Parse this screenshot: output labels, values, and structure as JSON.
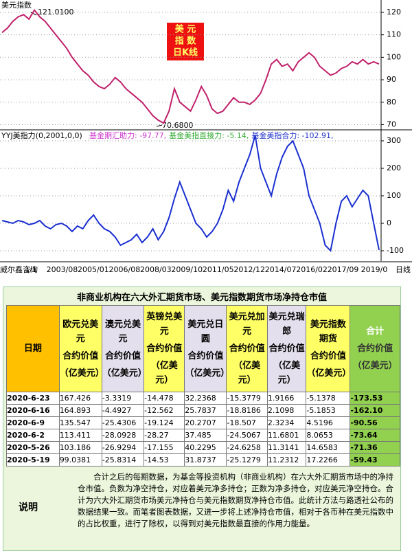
{
  "price_chart": {
    "type": "line",
    "title": "美元指数",
    "box_lines": [
      "美 元",
      "指 数",
      "日K线"
    ],
    "high_label": "121.0100",
    "low_label": "70.6800",
    "color": "#c0206a",
    "ylim": [
      68,
      125.5
    ],
    "yticks": [
      70,
      80,
      90,
      100,
      110,
      120
    ],
    "grid": true,
    "values": [
      111,
      113,
      116,
      118,
      119,
      117,
      121.01,
      118,
      116,
      113,
      110,
      107,
      104,
      100,
      97,
      94,
      92,
      89,
      87,
      86,
      88,
      91,
      89,
      86,
      84,
      82,
      80,
      77,
      74,
      72,
      70.68,
      76,
      86,
      80,
      78,
      76,
      81,
      87,
      83,
      77,
      75,
      76,
      79,
      82,
      80,
      80,
      79,
      81,
      84,
      90,
      97,
      99,
      96,
      97,
      94,
      98,
      100,
      102,
      100,
      96,
      94,
      92,
      93,
      95,
      96,
      98,
      97,
      99,
      97,
      98,
      97
    ]
  },
  "indicator_chart": {
    "type": "line",
    "title": "YYJ美指力(0,2001,0,0)",
    "legend": [
      {
        "text": "基金期汇助力: -97.77,",
        "color": "#cc33cc"
      },
      {
        "text": "基金美指直接力: -5.14,",
        "color": "#33aa33"
      },
      {
        "text": "基金美指合力: -102.91,",
        "color": "#2233cc"
      }
    ],
    "color": "#1a2fd0",
    "ylim": [
      -137.5,
      337.5
    ],
    "yticks": [
      -100,
      0,
      100,
      200,
      300
    ],
    "grid": true,
    "values": [
      10,
      5,
      0,
      10,
      5,
      -5,
      0,
      10,
      -10,
      -20,
      -5,
      0,
      -10,
      -30,
      -10,
      -20,
      10,
      30,
      0,
      -20,
      -30,
      -50,
      -80,
      -70,
      -60,
      -40,
      -70,
      -50,
      -20,
      -60,
      -30,
      20,
      90,
      150,
      100,
      50,
      0,
      -20,
      -50,
      -30,
      0,
      50,
      120,
      80,
      150,
      200,
      250,
      320,
      200,
      150,
      100,
      180,
      240,
      280,
      300,
      250,
      200,
      100,
      50,
      0,
      -80,
      -100,
      0,
      80,
      100,
      60,
      90,
      120,
      100,
      0,
      -97
    ],
    "x_labels": [
      "威尔鑫咨询",
      "1/1",
      "2003/08",
      "2005/01",
      "2006/08",
      "2008/03",
      "2009/10",
      "2011/05",
      "2012/12",
      "2014/07",
      "2016/02",
      "2017/09",
      "2019/0",
      "日线"
    ]
  },
  "table": {
    "title": "非商业机构在六大外汇期货市场、美元指数期货市场净持仓市值",
    "headers": [
      {
        "name": "日期"
      },
      {
        "name": "欧元兑美元",
        "sub": "合约价值",
        "unit": "（亿美元）"
      },
      {
        "name": "澳元兑美元",
        "sub": "合约价值",
        "unit": "（亿美元）"
      },
      {
        "name": "英镑兑美元",
        "sub": "合约价值",
        "unit": "（亿美元）"
      },
      {
        "name": "美元兑日圆",
        "sub": "合约价值",
        "unit": "（亿美元）"
      },
      {
        "name": "美元兑加元",
        "sub": "合约价值",
        "unit": "（亿美元）"
      },
      {
        "name": "美元兑瑞郎",
        "sub": "合约价值",
        "unit": "（亿美元）"
      },
      {
        "name": "美元指数期货",
        "sub": "合约价值",
        "unit": "（亿美元）"
      },
      {
        "name": "合计",
        "sub": "合约价值",
        "unit": "（亿美元）"
      }
    ],
    "rows": [
      [
        "2020-6-23",
        "167.426",
        "-3.3319",
        "-14.478",
        "32.2368",
        "-15.3779",
        "1.9166",
        "-5.1378",
        "-173.53"
      ],
      [
        "2020-6-16",
        "164.893",
        "-4.4927",
        "-12.562",
        "25.7837",
        "-18.8186",
        "2.1098",
        "-5.1853",
        "-162.10"
      ],
      [
        "2020-6-9",
        "135.547",
        "-25.4306",
        "-19.124",
        "20.2707",
        "-18.507",
        "2.3234",
        "4.5196",
        "-90.56"
      ],
      [
        "2020-6-2",
        "113.411",
        "-28.0928",
        "-28.27",
        "37.485",
        "-24.5067",
        "11.6801",
        "8.0653",
        "-73.64"
      ],
      [
        "2020-5-26",
        "103.186",
        "-26.9294",
        "-17.155",
        "40.2295",
        "-24.6258",
        "11.3141",
        "14.6583",
        "-71.36"
      ],
      [
        "2020-5-19",
        "99.0381",
        "-25.8314",
        "-14.53",
        "31.8737",
        "-25.1279",
        "11.2312",
        "17.2266",
        "-59.43"
      ]
    ]
  },
  "note": {
    "label": "说明",
    "text": "合计之后的每期数据，为基金等投资机构（非商业机构）在六大外汇期货市场中的净持仓市值。负数为净空持仓，对应着美元净多持仓；正数为净多持仓，对应美元净空持仓。合计为六大外汇期货市场美元净持仓与美元指数期货净持仓市值。此统计方法与路透社公布的数据结果一致。而笔者图表数据，又进一步将上述净持仓市值，相对于各币种在美元指数中的占比权重，进行了除权，以得到对美元指数最直接的作用力能量。"
  }
}
